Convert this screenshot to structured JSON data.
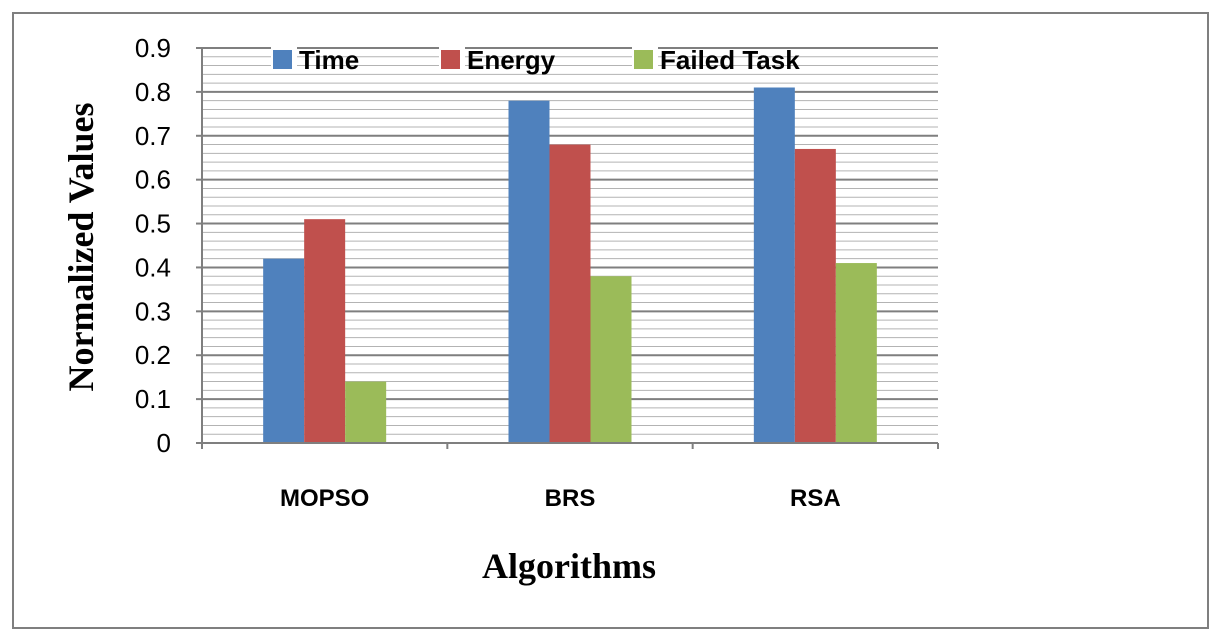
{
  "chart_data": {
    "type": "bar",
    "categories": [
      "MOPSO",
      "BRS",
      "RSA"
    ],
    "series": [
      {
        "name": "Time",
        "values": [
          0.42,
          0.78,
          0.81
        ],
        "color": "#4f81bd"
      },
      {
        "name": "Energy",
        "values": [
          0.51,
          0.68,
          0.67
        ],
        "color": "#c0504d"
      },
      {
        "name": "Failed Task",
        "values": [
          0.14,
          0.38,
          0.41
        ],
        "color": "#9bbb59"
      }
    ],
    "title": "",
    "xlabel": "Algorithms",
    "ylabel": "Normalized Values",
    "ylim": [
      0,
      0.9
    ],
    "yticks": [
      "0",
      "0.1",
      "0.2",
      "0.3",
      "0.4",
      "0.5",
      "0.6",
      "0.7",
      "0.8",
      "0.9"
    ],
    "grid": true,
    "legend_position": "top"
  }
}
